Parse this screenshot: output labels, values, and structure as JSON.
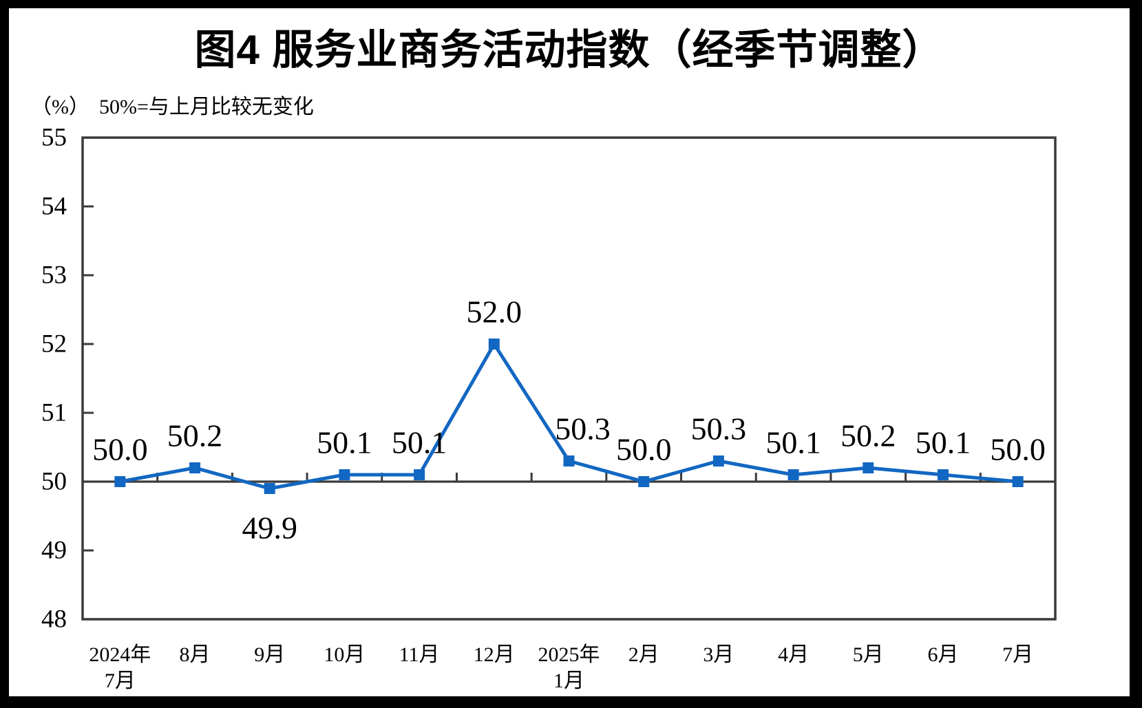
{
  "frame": {
    "background_color": "#000000",
    "page_color": "#ffffff"
  },
  "chart_data": {
    "type": "line",
    "title": "图4 服务业商务活动指数（经季节调整）",
    "unit_label": "（%）",
    "note": "50%=与上月比较无变化",
    "categories": [
      "2024年\n7月",
      "8月",
      "9月",
      "10月",
      "11月",
      "12月",
      "2025年\n1月",
      "2月",
      "3月",
      "4月",
      "5月",
      "6月",
      "7月"
    ],
    "values": [
      50.0,
      50.2,
      49.9,
      50.1,
      50.1,
      52.0,
      50.3,
      50.0,
      50.3,
      50.1,
      50.2,
      50.1,
      50.0
    ],
    "point_labels": [
      "50.0",
      "50.2",
      "49.9",
      "50.1",
      "50.1",
      "52.0",
      "50.3",
      "50.0",
      "50.3",
      "50.1",
      "50.2",
      "50.1",
      "50.0"
    ],
    "ylim": [
      48,
      55
    ],
    "yticks": [
      55,
      54,
      53,
      52,
      51,
      50,
      49,
      48
    ],
    "reference_line": 50,
    "grid": "off",
    "legend": "none",
    "line_color": "#1267C2",
    "marker_color": "#1267C2",
    "axis_color": "#3A3A3A",
    "label_color": "#000000"
  }
}
